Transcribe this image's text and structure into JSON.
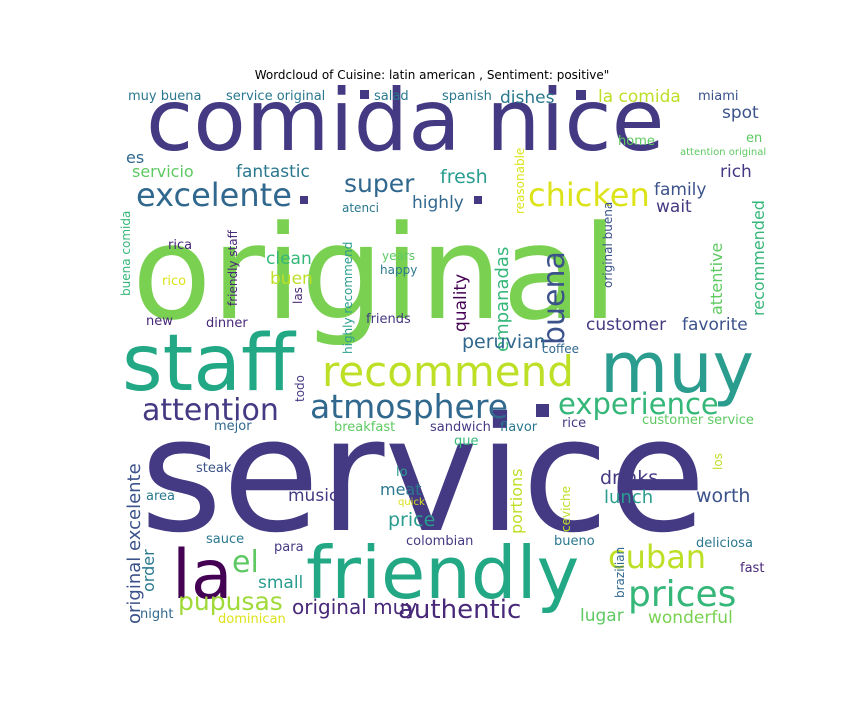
{
  "chart_data": {
    "type": "wordcloud",
    "title": "Wordcloud of Cuisine: latin american , Sentiment: positive\"",
    "background": "#ffffff",
    "colormap": "viridis",
    "words": [
      {
        "text": "service",
        "size": 1.0,
        "color": "#443a83"
      },
      {
        "text": "original",
        "size": 0.95,
        "color": "#7ad151"
      },
      {
        "text": "comida",
        "size": 0.62,
        "color": "#443a83"
      },
      {
        "text": "nice",
        "size": 0.62,
        "color": "#443a83"
      },
      {
        "text": "staff",
        "size": 0.55,
        "color": "#22a884"
      },
      {
        "text": "friendly",
        "size": 0.52,
        "color": "#22a884"
      },
      {
        "text": "muy",
        "size": 0.5,
        "color": "#2a9d8f"
      },
      {
        "text": "la",
        "size": 0.48,
        "color": "#440154"
      },
      {
        "text": "recommend",
        "size": 0.28,
        "color": "#bddf26"
      },
      {
        "text": "atmosphere",
        "size": 0.24,
        "color": "#31688e"
      },
      {
        "text": "attention",
        "size": 0.22,
        "color": "#443a83"
      },
      {
        "text": "el",
        "size": 0.22,
        "color": "#5ec962"
      },
      {
        "text": "prices",
        "size": 0.22,
        "color": "#35b779"
      },
      {
        "text": "excelente",
        "size": 0.21,
        "color": "#31688e"
      },
      {
        "text": "chicken",
        "size": 0.21,
        "color": "#dce319"
      },
      {
        "text": "buena",
        "size": 0.21,
        "color": "#3b528b"
      },
      {
        "text": "experience",
        "size": 0.2,
        "color": "#35b779"
      },
      {
        "text": "cuban",
        "size": 0.2,
        "color": "#bddf26"
      },
      {
        "text": "authentic",
        "size": 0.19,
        "color": "#482878"
      },
      {
        "text": "pupusas",
        "size": 0.17,
        "color": "#a0da39"
      },
      {
        "text": "super",
        "size": 0.17,
        "color": "#31688e"
      },
      {
        "text": "original excelente",
        "size": 0.13,
        "color": "#3b528b"
      },
      {
        "text": "original muy",
        "size": 0.13,
        "color": "#482878"
      },
      {
        "text": "empanadas",
        "size": 0.12,
        "color": "#35b779"
      },
      {
        "text": "fresh",
        "size": 0.13,
        "color": "#2a9d8f"
      },
      {
        "text": "peruvian",
        "size": 0.13,
        "color": "#31688e"
      },
      {
        "text": "quality",
        "size": 0.12,
        "color": "#440154"
      },
      {
        "text": "dishes",
        "size": 0.12,
        "color": "#2a788e"
      },
      {
        "text": "la comida",
        "size": 0.12,
        "color": "#bddf26"
      },
      {
        "text": "fantastic",
        "size": 0.12,
        "color": "#2a788e"
      },
      {
        "text": "highly",
        "size": 0.12,
        "color": "#31688e"
      },
      {
        "text": "family",
        "size": 0.12,
        "color": "#3b528b"
      },
      {
        "text": "wait",
        "size": 0.12,
        "color": "#443a83"
      },
      {
        "text": "rich",
        "size": 0.12,
        "color": "#443a83"
      },
      {
        "text": "spot",
        "size": 0.12,
        "color": "#3b528b"
      },
      {
        "text": "customer",
        "size": 0.12,
        "color": "#443a83"
      },
      {
        "text": "favorite",
        "size": 0.12,
        "color": "#3b528b"
      },
      {
        "text": "recommended",
        "size": 0.11,
        "color": "#35b779"
      },
      {
        "text": "attentive",
        "size": 0.11,
        "color": "#5ec962"
      },
      {
        "text": "drinks",
        "size": 0.13,
        "color": "#443a83"
      },
      {
        "text": "lunch",
        "size": 0.13,
        "color": "#2a9d8f"
      },
      {
        "text": "worth",
        "size": 0.13,
        "color": "#3b528b"
      },
      {
        "text": "music",
        "size": 0.12,
        "color": "#443a83"
      },
      {
        "text": "price",
        "size": 0.13,
        "color": "#2a9d8f"
      },
      {
        "text": "meat",
        "size": 0.12,
        "color": "#2a788e"
      },
      {
        "text": "portions",
        "size": 0.11,
        "color": "#bddf26"
      },
      {
        "text": "clean",
        "size": 0.12,
        "color": "#35b779"
      },
      {
        "text": "buen",
        "size": 0.12,
        "color": "#bddf26"
      },
      {
        "text": "small",
        "size": 0.12,
        "color": "#2a9d8f"
      },
      {
        "text": "order",
        "size": 0.11,
        "color": "#2a788e"
      },
      {
        "text": "lugar",
        "size": 0.12,
        "color": "#5ec962"
      },
      {
        "text": "wonderful",
        "size": 0.12,
        "color": "#7ad151"
      },
      {
        "text": "es",
        "size": 0.11,
        "color": "#31688e"
      },
      {
        "text": "servicio",
        "size": 0.11,
        "color": "#5ec962"
      },
      {
        "text": "muy buena",
        "size": 0.09,
        "color": "#2a788e"
      },
      {
        "text": "service original",
        "size": 0.09,
        "color": "#2a788e"
      },
      {
        "text": "salad",
        "size": 0.09,
        "color": "#2a788e"
      },
      {
        "text": "spanish",
        "size": 0.09,
        "color": "#2a788e"
      },
      {
        "text": "miami",
        "size": 0.09,
        "color": "#3b528b"
      },
      {
        "text": "home",
        "size": 0.09,
        "color": "#5ec962"
      },
      {
        "text": "en",
        "size": 0.09,
        "color": "#5ec962"
      },
      {
        "text": "attention original",
        "size": 0.07,
        "color": "#5ec962"
      },
      {
        "text": "reasonable",
        "size": 0.08,
        "color": "#dce319"
      },
      {
        "text": "atenci",
        "size": 0.08,
        "color": "#2a788e"
      },
      {
        "text": "buena comida",
        "size": 0.08,
        "color": "#35b779"
      },
      {
        "text": "friendly staff",
        "size": 0.08,
        "color": "#482878"
      },
      {
        "text": "rica",
        "size": 0.09,
        "color": "#482878"
      },
      {
        "text": "rico",
        "size": 0.09,
        "color": "#dce319"
      },
      {
        "text": "years",
        "size": 0.08,
        "color": "#5ec962"
      },
      {
        "text": "happy",
        "size": 0.08,
        "color": "#2a788e"
      },
      {
        "text": "highly recommend",
        "size": 0.08,
        "color": "#2a9d8f"
      },
      {
        "text": "las",
        "size": 0.08,
        "color": "#482878"
      },
      {
        "text": "original buena",
        "size": 0.08,
        "color": "#3b528b"
      },
      {
        "text": "new",
        "size": 0.09,
        "color": "#482878"
      },
      {
        "text": "dinner",
        "size": 0.09,
        "color": "#482878"
      },
      {
        "text": "friends",
        "size": 0.09,
        "color": "#443a83"
      },
      {
        "text": "coffee",
        "size": 0.08,
        "color": "#31688e"
      },
      {
        "text": "todo",
        "size": 0.08,
        "color": "#443a83"
      },
      {
        "text": "mejor",
        "size": 0.09,
        "color": "#31688e"
      },
      {
        "text": "breakfast",
        "size": 0.09,
        "color": "#5ec962"
      },
      {
        "text": "sandwich",
        "size": 0.09,
        "color": "#443a83"
      },
      {
        "text": "flavor",
        "size": 0.09,
        "color": "#2a788e"
      },
      {
        "text": "rice",
        "size": 0.09,
        "color": "#443a83"
      },
      {
        "text": "customer service",
        "size": 0.09,
        "color": "#5ec962"
      },
      {
        "text": "que",
        "size": 0.09,
        "color": "#35b779"
      },
      {
        "text": "steak",
        "size": 0.09,
        "color": "#3b528b"
      },
      {
        "text": "lo",
        "size": 0.09,
        "color": "#2a9d8f"
      },
      {
        "text": "los",
        "size": 0.08,
        "color": "#bddf26"
      },
      {
        "text": "area",
        "size": 0.09,
        "color": "#2a788e"
      },
      {
        "text": "quick",
        "size": 0.07,
        "color": "#dce319"
      },
      {
        "text": "ceviche",
        "size": 0.08,
        "color": "#bddf26"
      },
      {
        "text": "sauce",
        "size": 0.09,
        "color": "#2a788e"
      },
      {
        "text": "para",
        "size": 0.09,
        "color": "#443a83"
      },
      {
        "text": "colombian",
        "size": 0.09,
        "color": "#443a83"
      },
      {
        "text": "bueno",
        "size": 0.09,
        "color": "#2a788e"
      },
      {
        "text": "brazilian",
        "size": 0.08,
        "color": "#31688e"
      },
      {
        "text": "deliciosa",
        "size": 0.09,
        "color": "#2a788e"
      },
      {
        "text": "fast",
        "size": 0.09,
        "color": "#482878"
      },
      {
        "text": "night",
        "size": 0.09,
        "color": "#31688e"
      },
      {
        "text": "dominican",
        "size": 0.09,
        "color": "#dce319"
      }
    ]
  }
}
